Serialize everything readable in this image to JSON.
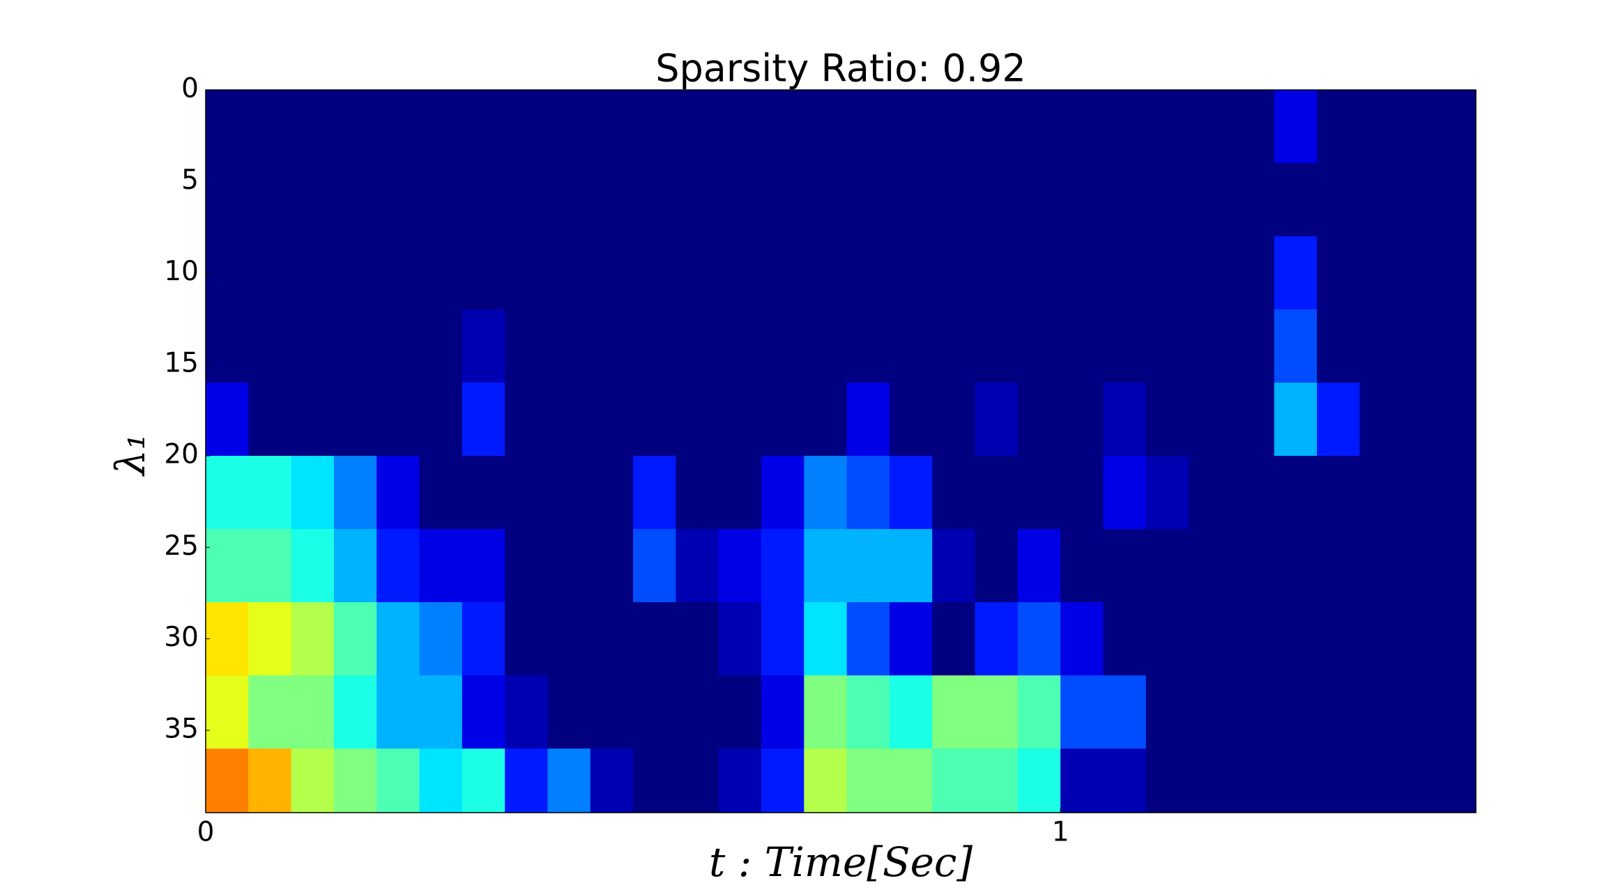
{
  "chart_data": {
    "type": "heatmap",
    "title": "Sparsity Ratio: 0.92",
    "xlabel": "t : Time[Sec]",
    "ylabel": "λ₁",
    "colormap": "jet",
    "zlim": [
      0,
      1
    ],
    "xlim": [
      0,
      1.486
    ],
    "xticks": [
      0,
      1
    ],
    "ylim": [
      39.5,
      0
    ],
    "yticks": [
      0,
      5,
      10,
      15,
      20,
      25,
      30,
      35
    ],
    "xbins": [
      0,
      0.05,
      0.1,
      0.15,
      0.2,
      0.25,
      0.3,
      0.35,
      0.4,
      0.45,
      0.5,
      0.55,
      0.6,
      0.65,
      0.7,
      0.75,
      0.8,
      0.85,
      0.9,
      0.95,
      1,
      1.05,
      1.1,
      1.15,
      1.2,
      1.25,
      1.3,
      1.35,
      1.4,
      1.45,
      1.486
    ],
    "ybins": [
      0,
      4,
      8,
      12,
      16,
      20,
      24,
      28,
      32,
      36,
      39.5
    ],
    "z": [
      [
        0,
        0,
        0,
        0,
        0,
        0,
        0,
        0,
        0,
        0,
        0,
        0,
        0,
        0,
        0,
        0,
        0,
        0,
        0,
        0,
        0,
        0,
        0,
        0,
        0,
        0.1,
        0,
        0,
        0,
        0
      ],
      [
        0,
        0,
        0,
        0,
        0,
        0,
        0,
        0,
        0,
        0,
        0,
        0,
        0,
        0,
        0,
        0,
        0,
        0,
        0,
        0,
        0,
        0,
        0,
        0,
        0,
        0,
        0,
        0,
        0,
        0
      ],
      [
        0,
        0,
        0,
        0,
        0,
        0,
        0,
        0,
        0,
        0,
        0,
        0,
        0,
        0,
        0,
        0,
        0,
        0,
        0,
        0,
        0,
        0,
        0,
        0,
        0,
        0.15,
        0,
        0,
        0,
        0
      ],
      [
        0,
        0,
        0,
        0,
        0,
        0,
        0.05,
        0,
        0,
        0,
        0,
        0,
        0,
        0,
        0,
        0,
        0,
        0,
        0,
        0,
        0,
        0,
        0,
        0,
        0,
        0.2,
        0,
        0,
        0,
        0
      ],
      [
        0.1,
        0,
        0,
        0,
        0,
        0,
        0.15,
        0,
        0,
        0,
        0,
        0,
        0,
        0,
        0,
        0.1,
        0,
        0,
        0.05,
        0,
        0,
        0.05,
        0,
        0,
        0,
        0.3,
        0.15,
        0,
        0,
        0
      ],
      [
        0.4,
        0.4,
        0.35,
        0.25,
        0.1,
        0,
        0,
        0,
        0,
        0,
        0.15,
        0,
        0,
        0.1,
        0.25,
        0.2,
        0.15,
        0,
        0,
        0,
        0,
        0.1,
        0.05,
        0,
        0,
        0,
        0,
        0,
        0,
        0
      ],
      [
        0.45,
        0.45,
        0.4,
        0.3,
        0.15,
        0.1,
        0.1,
        0,
        0,
        0,
        0.2,
        0.05,
        0.1,
        0.15,
        0.3,
        0.3,
        0.3,
        0.05,
        0,
        0.1,
        0,
        0,
        0,
        0,
        0,
        0,
        0,
        0,
        0,
        0
      ],
      [
        0.65,
        0.6,
        0.55,
        0.45,
        0.3,
        0.25,
        0.15,
        0,
        0,
        0,
        0,
        0,
        0.05,
        0.15,
        0.35,
        0.2,
        0.1,
        0,
        0.15,
        0.2,
        0.1,
        0,
        0,
        0,
        0,
        0,
        0,
        0,
        0,
        0
      ],
      [
        0.6,
        0.5,
        0.5,
        0.4,
        0.3,
        0.3,
        0.1,
        0.05,
        0,
        0,
        0,
        0,
        0,
        0.1,
        0.5,
        0.45,
        0.4,
        0.5,
        0.5,
        0.45,
        0.2,
        0.2,
        0,
        0,
        0,
        0,
        0,
        0,
        0,
        0
      ],
      [
        0.75,
        0.7,
        0.55,
        0.5,
        0.45,
        0.35,
        0.4,
        0.15,
        0.25,
        0.05,
        0,
        0,
        0.05,
        0.15,
        0.55,
        0.5,
        0.5,
        0.45,
        0.45,
        0.4,
        0.05,
        0.05,
        0,
        0,
        0,
        0,
        0,
        0,
        0,
        0
      ]
    ]
  }
}
